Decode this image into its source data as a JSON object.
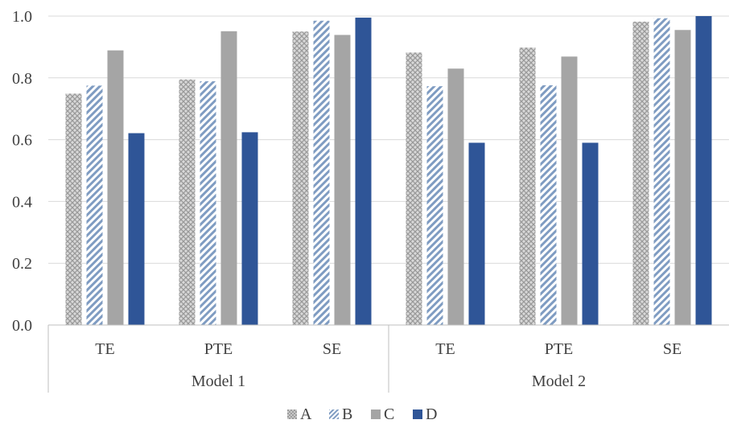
{
  "chart_data": {
    "type": "bar",
    "title": "",
    "xlabel": "",
    "ylabel": "",
    "ylim": [
      0,
      1.0
    ],
    "yticks": [
      "0.0",
      "0.2",
      "0.4",
      "0.6",
      "0.8",
      "1.0"
    ],
    "ytick_values": [
      0,
      0.2,
      0.4,
      0.6,
      0.8,
      1.0
    ],
    "grid": true,
    "legend_position": "bottom",
    "groups": [
      {
        "label": "Model 1",
        "categories": [
          "TE",
          "PTE",
          "SE"
        ]
      },
      {
        "label": "Model 2",
        "categories": [
          "TE",
          "PTE",
          "SE"
        ]
      }
    ],
    "categories": [
      "TE",
      "PTE",
      "SE",
      "TE",
      "PTE",
      "SE"
    ],
    "series": [
      {
        "name": "A",
        "pattern": "crosshatch",
        "color": "#b0b0b0",
        "values": [
          0.749,
          0.795,
          0.95,
          0.882,
          0.898,
          0.982
        ]
      },
      {
        "name": "B",
        "pattern": "diagonal-stripes",
        "color": "#7f9cc2",
        "values": [
          0.775,
          0.789,
          0.985,
          0.773,
          0.776,
          0.993
        ]
      },
      {
        "name": "C",
        "pattern": "solid",
        "color": "#a5a5a5",
        "values": [
          0.889,
          0.951,
          0.939,
          0.83,
          0.869,
          0.955
        ]
      },
      {
        "name": "D",
        "pattern": "solid",
        "color": "#2f5597",
        "values": [
          0.621,
          0.624,
          0.995,
          0.59,
          0.59,
          1.0
        ]
      }
    ]
  }
}
